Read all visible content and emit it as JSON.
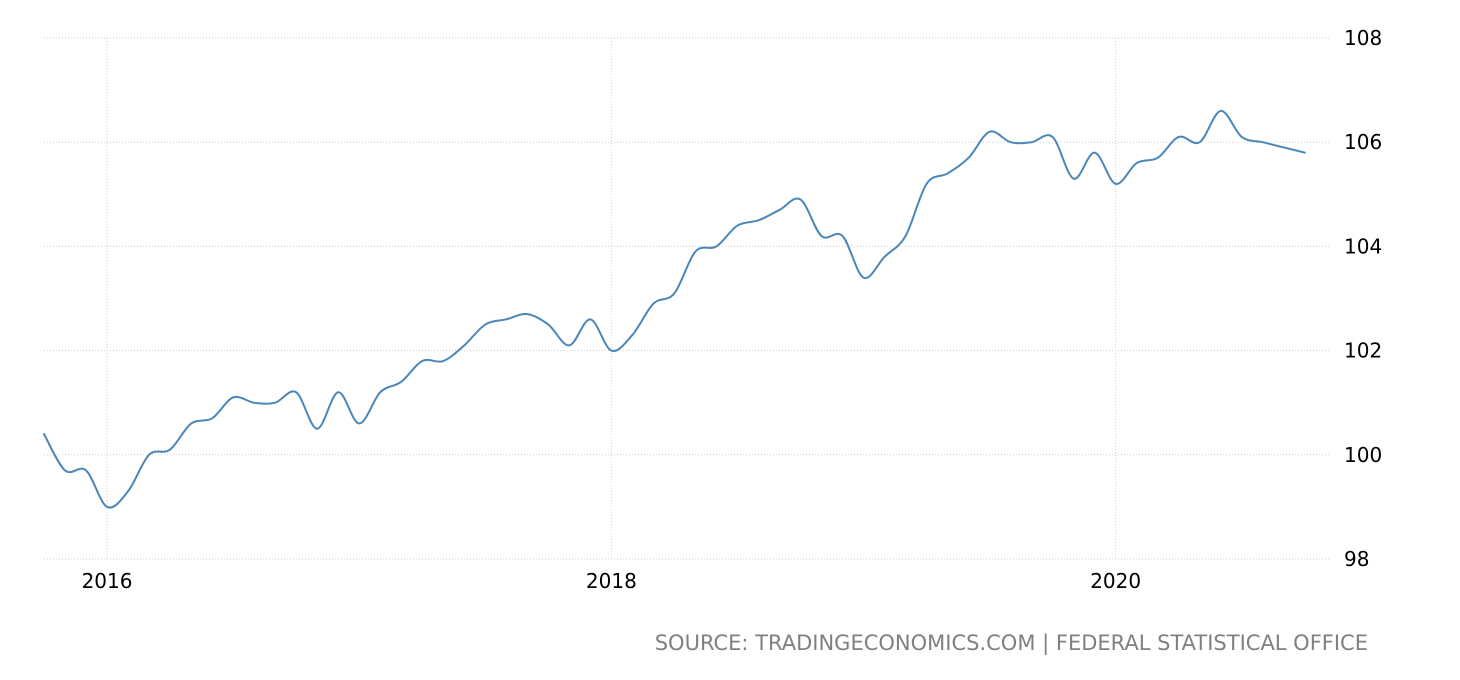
{
  "chart_data": {
    "type": "line",
    "title": "",
    "xlabel": "",
    "ylabel": "",
    "xlim": [
      2015.75,
      2020.85
    ],
    "ylim": [
      98,
      108
    ],
    "grid": true,
    "y_axis_side": "right",
    "x_ticks": [
      2016,
      2018,
      2020
    ],
    "x_tick_labels": [
      "2016",
      "2018",
      "2020"
    ],
    "y_ticks": [
      98,
      100,
      102,
      104,
      106,
      108
    ],
    "y_tick_labels": [
      "98",
      "100",
      "102",
      "104",
      "106",
      "108"
    ],
    "series": [
      {
        "color": "#4a86b8",
        "x": [
          2015.75,
          2015.8333,
          2015.9167,
          2016.0,
          2016.0833,
          2016.1667,
          2016.25,
          2016.3333,
          2016.4167,
          2016.5,
          2016.5833,
          2016.6667,
          2016.75,
          2016.8333,
          2016.9167,
          2017.0,
          2017.0833,
          2017.1667,
          2017.25,
          2017.3333,
          2017.4167,
          2017.5,
          2017.5833,
          2017.6667,
          2017.75,
          2017.8333,
          2017.9167,
          2018.0,
          2018.0833,
          2018.1667,
          2018.25,
          2018.3333,
          2018.4167,
          2018.5,
          2018.5833,
          2018.6667,
          2018.75,
          2018.8333,
          2018.9167,
          2019.0,
          2019.0833,
          2019.1667,
          2019.25,
          2019.3333,
          2019.4167,
          2019.5,
          2019.5833,
          2019.6667,
          2019.75,
          2019.8333,
          2019.9167,
          2020.0,
          2020.0833,
          2020.1667,
          2020.25,
          2020.3333,
          2020.4167,
          2020.5,
          2020.5833,
          2020.6667,
          2020.75
        ],
        "y": [
          100.4,
          99.7,
          99.7,
          99.0,
          99.3,
          100.0,
          100.1,
          100.6,
          100.7,
          101.1,
          101.0,
          101.0,
          101.2,
          100.5,
          101.2,
          100.6,
          101.2,
          101.4,
          101.8,
          101.8,
          102.1,
          102.5,
          102.6,
          102.7,
          102.5,
          102.1,
          102.6,
          102.0,
          102.3,
          102.9,
          103.1,
          103.9,
          104.0,
          104.4,
          104.5,
          104.7,
          104.9,
          104.2,
          104.2,
          103.4,
          103.8,
          104.2,
          105.2,
          105.4,
          105.7,
          106.2,
          106.0,
          106.0,
          106.1,
          105.3,
          105.8,
          105.2,
          105.6,
          105.7,
          106.1,
          106.0,
          106.6,
          106.1,
          106.0,
          105.9,
          105.8
        ]
      }
    ]
  },
  "source_text": "SOURCE: TRADINGECONOMICS.COM | FEDERAL STATISTICAL OFFICE"
}
